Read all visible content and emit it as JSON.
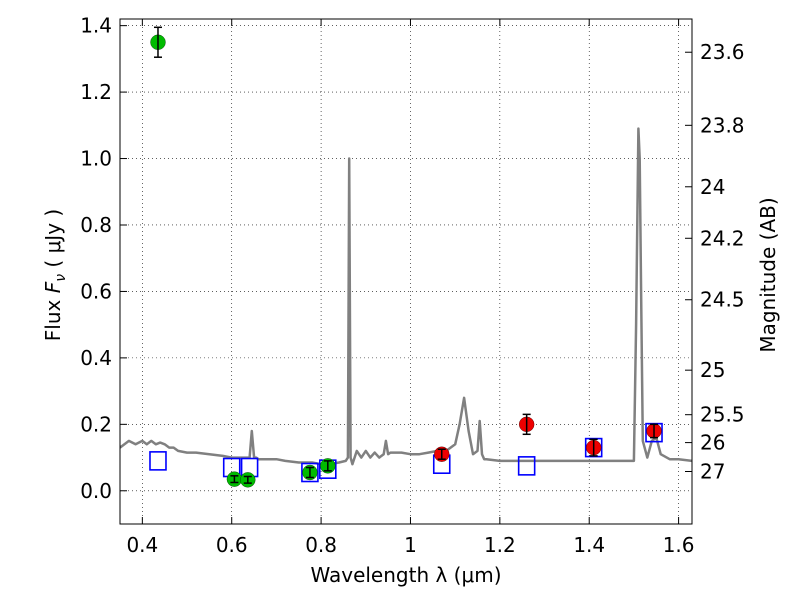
{
  "chart_data": {
    "type": "scatter",
    "xlabel": "Wavelength  λ (μm)",
    "ylabel": "Flux  F_ν  ( μJy )",
    "ylabel_parts": {
      "prefix": "Flux  ",
      "italic": "F",
      "sub": "ν",
      "suffix": "  ( μJy )"
    },
    "y2label": "Magnitude (AB)",
    "xlim": [
      0.35,
      1.63
    ],
    "ylim": [
      -0.1,
      1.42
    ],
    "grid": true,
    "x_ticks": [
      0.4,
      0.6,
      0.8,
      1.0,
      1.2,
      1.4,
      1.6
    ],
    "x_tick_labels": [
      "0.4",
      "0.6",
      "0.8",
      "1",
      "1.2",
      "1.4",
      "1.6"
    ],
    "y_ticks": [
      0.0,
      0.2,
      0.4,
      0.6,
      0.8,
      1.0,
      1.2,
      1.4
    ],
    "y_tick_labels": [
      "0.0",
      "0.2",
      "0.4",
      "0.6",
      "0.8",
      "1.0",
      "1.2",
      "1.4"
    ],
    "right_ticks": [
      {
        "label": "23.6",
        "flux": 1.32
      },
      {
        "label": "23.8",
        "flux": 1.1
      },
      {
        "label": "24",
        "flux": 0.915
      },
      {
        "label": "24.2",
        "flux": 0.76
      },
      {
        "label": "24.5",
        "flux": 0.575
      },
      {
        "label": "25",
        "flux": 0.363
      },
      {
        "label": "25.5",
        "flux": 0.229
      },
      {
        "label": "26",
        "flux": 0.145
      },
      {
        "label": "27",
        "flux": 0.058
      }
    ],
    "series": [
      {
        "kind": "line",
        "color": "#808080",
        "x": [
          0.35,
          0.37,
          0.385,
          0.4,
          0.41,
          0.42,
          0.43,
          0.44,
          0.45,
          0.46,
          0.47,
          0.48,
          0.5,
          0.52,
          0.55,
          0.58,
          0.6,
          0.62,
          0.64,
          0.645,
          0.65,
          0.655,
          0.66,
          0.68,
          0.7,
          0.72,
          0.75,
          0.78,
          0.8,
          0.82,
          0.84,
          0.855,
          0.86,
          0.863,
          0.866,
          0.87,
          0.88,
          0.89,
          0.9,
          0.91,
          0.92,
          0.93,
          0.94,
          0.945,
          0.95,
          0.955,
          0.96,
          0.98,
          1.0,
          1.02,
          1.04,
          1.06,
          1.08,
          1.1,
          1.11,
          1.12,
          1.13,
          1.14,
          1.15,
          1.155,
          1.16,
          1.165,
          1.17,
          1.2,
          1.3,
          1.4,
          1.48,
          1.5,
          1.505,
          1.51,
          1.513,
          1.516,
          1.52,
          1.53,
          1.54,
          1.55,
          1.56,
          1.58,
          1.6,
          1.63
        ],
        "y": [
          0.13,
          0.15,
          0.14,
          0.15,
          0.14,
          0.15,
          0.14,
          0.145,
          0.14,
          0.13,
          0.13,
          0.12,
          0.115,
          0.115,
          0.11,
          0.105,
          0.1,
          0.1,
          0.1,
          0.18,
          0.1,
          0.1,
          0.095,
          0.095,
          0.095,
          0.09,
          0.085,
          0.085,
          0.08,
          0.08,
          0.085,
          0.09,
          0.1,
          1.0,
          0.1,
          0.08,
          0.12,
          0.1,
          0.12,
          0.1,
          0.115,
          0.1,
          0.11,
          0.15,
          0.11,
          0.115,
          0.115,
          0.115,
          0.11,
          0.11,
          0.115,
          0.12,
          0.12,
          0.14,
          0.2,
          0.28,
          0.18,
          0.11,
          0.12,
          0.21,
          0.11,
          0.095,
          0.095,
          0.09,
          0.09,
          0.09,
          0.09,
          0.09,
          0.5,
          1.09,
          1.0,
          0.6,
          0.15,
          0.1,
          0.15,
          0.16,
          0.11,
          0.095,
          0.095,
          0.09
        ]
      },
      {
        "kind": "open-square",
        "color": "#0000ff",
        "x": [
          0.435,
          0.6,
          0.64,
          0.775,
          0.815,
          1.07,
          1.26,
          1.41,
          1.545
        ],
        "y": [
          0.09,
          0.07,
          0.07,
          0.055,
          0.065,
          0.08,
          0.075,
          0.13,
          0.175
        ]
      },
      {
        "kind": "filled-circle",
        "color": "#00bb00",
        "x": [
          0.435,
          0.606,
          0.636,
          0.775,
          0.815
        ],
        "y": [
          1.35,
          0.035,
          0.033,
          0.055,
          0.075
        ],
        "err": [
          0.045,
          0.01,
          0.01,
          0.015,
          0.015
        ]
      },
      {
        "kind": "filled-circle",
        "color": "#ee0000",
        "x": [
          1.07,
          1.26,
          1.41,
          1.545
        ],
        "y": [
          0.11,
          0.2,
          0.13,
          0.18
        ],
        "err": [
          0.015,
          0.03,
          0.025,
          0.02
        ]
      }
    ]
  }
}
